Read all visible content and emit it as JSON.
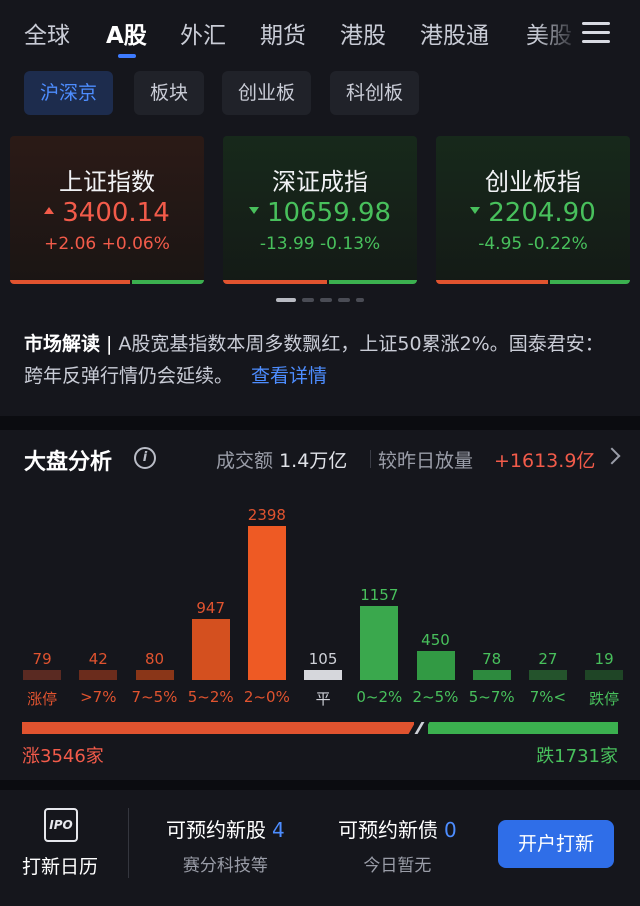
{
  "top_tabs": [
    "全球",
    "A股",
    "外汇",
    "期货",
    "港股",
    "港股通",
    "美股"
  ],
  "active_top_tab": "A股",
  "sub_tabs": [
    "沪深京",
    "板块",
    "创业板",
    "科创板"
  ],
  "indices": [
    {
      "name": "上证指数",
      "price": "3400.14",
      "change": "+2.06  +0.06%",
      "direction": "up"
    },
    {
      "name": "深证成指",
      "price": "10659.98",
      "change": "-13.99  -0.13%",
      "direction": "down"
    },
    {
      "name": "创业板指",
      "price": "2204.90",
      "change": "-4.95  -0.22%",
      "direction": "down"
    }
  ],
  "market_interpretation": {
    "label": "市场解读",
    "text": "A股宽基指数本周多数飘红，上证50累涨2%。国泰君安：跨年反弹行情仍会延续。",
    "link": "查看详情"
  },
  "analysis": {
    "title": "大盘分析",
    "volume_label": "成交额",
    "volume_value": "1.4万亿",
    "compare_label": "较昨日放量",
    "compare_value": "+1613.9亿",
    "up_count_text": "涨3546家",
    "down_count_text": "跌1731家",
    "up_count": 3546,
    "down_count": 1731
  },
  "chart_data": {
    "type": "bar",
    "categories": [
      "涨停",
      ">7%",
      "7~5%",
      "5~2%",
      "2~0%",
      "平",
      "0~2%",
      "2~5%",
      "5~7%",
      "7%<",
      "跌停"
    ],
    "values": [
      79,
      42,
      80,
      947,
      2398,
      105,
      1157,
      450,
      78,
      27,
      19
    ],
    "title": "",
    "xlabel": "",
    "ylabel": "",
    "colors": [
      "#5a2a22",
      "#6b2c1c",
      "#8a3618",
      "#d4501f",
      "#ee5a24",
      "#d6d7dc",
      "#3aa84d",
      "#329a44",
      "#2d8a3e",
      "#24532c",
      "#1f4526"
    ],
    "label_colors": [
      "#e0532f",
      "#e0532f",
      "#e0532f",
      "#e0532f",
      "#e0532f",
      "#cfd1d8",
      "#48c05c",
      "#48c05c",
      "#48c05c",
      "#48c05c",
      "#48c05c"
    ]
  },
  "bottom_bar": {
    "ipo_calendar_icon": "IPO",
    "ipo_calendar_label": "打新日历",
    "new_stocks_label": "可预约新股",
    "new_stocks_count": "4",
    "new_stocks_sub": "赛分科技等",
    "new_bonds_label": "可预约新债",
    "new_bonds_count": "0",
    "new_bonds_sub": "今日暂无",
    "open_button": "开户打新"
  },
  "colors": {
    "up": "#f25b4a",
    "down": "#48c05c",
    "accent": "#3d7bff"
  }
}
